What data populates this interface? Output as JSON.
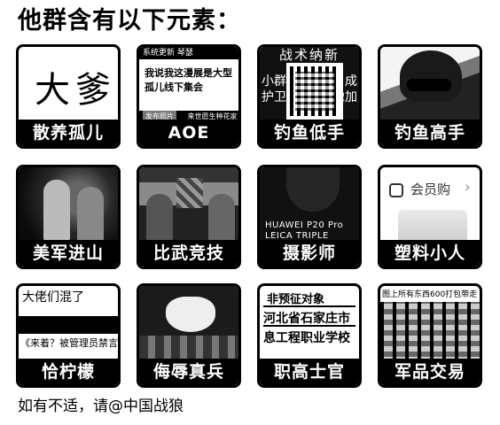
{
  "title": "他群含有以下元素：",
  "footer": "如有不适，请@中国战狼",
  "tiles": [
    {
      "label": "散养孤儿",
      "art": {
        "calligraphy": "大爹"
      }
    },
    {
      "label": "AOE",
      "art": {
        "bar_text": "系统更新  琴瑟",
        "lines": [
          "我说我这漫展是大型",
          "孤儿线下集会"
        ],
        "bottom_button": "发布照片",
        "bottom_text": "来世愿生种花家"
      }
    },
    {
      "label": "钓鱼低手",
      "art": {
        "top_text": "战术纳新",
        "left_text": "小群\n护卫",
        "right_text": "成\n豫加"
      }
    },
    {
      "label": "钓鱼高手",
      "art": {}
    },
    {
      "label": "美军进山",
      "art": {}
    },
    {
      "label": "比武竞技",
      "art": {}
    },
    {
      "label": "摄影师",
      "art": {
        "line1": "HUAWEI P20 Pro",
        "line2": "LEICA TRIPLE CAMER"
      }
    },
    {
      "label": "塑料小人",
      "art": {
        "vip_text": "会员购"
      }
    },
    {
      "label": "恰柠檬",
      "art": {
        "chat_line1": "大佬们混了",
        "chat_line2": "《来着？被管理员禁言"
      }
    },
    {
      "label": "侮辱真兵",
      "art": {}
    },
    {
      "label": "职高士官",
      "art": {
        "line1": "非预征对象",
        "line2": "河北省石家庄市",
        "line3": "息工程职业学校"
      }
    },
    {
      "label": "军品交易",
      "art": {
        "top_text": "图上所有东西600打包带走"
      }
    }
  ]
}
